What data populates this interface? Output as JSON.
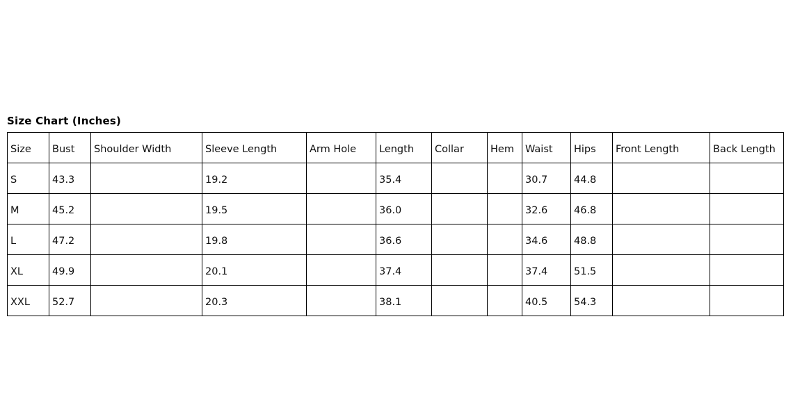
{
  "title": "Size Chart (Inches)",
  "columns": [
    "Size",
    "Bust",
    "Shoulder Width",
    "Sleeve Length",
    "Arm Hole",
    "Length",
    "Collar",
    "Hem",
    "Waist",
    "Hips",
    "Front Length",
    "Back Length"
  ],
  "rows": [
    [
      "S",
      "43.3",
      "",
      "19.2",
      "",
      "35.4",
      "",
      "",
      "30.7",
      "44.8",
      "",
      ""
    ],
    [
      "M",
      "45.2",
      "",
      "19.5",
      "",
      "36.0",
      "",
      "",
      "32.6",
      "46.8",
      "",
      ""
    ],
    [
      "L",
      "47.2",
      "",
      "19.8",
      "",
      "36.6",
      "",
      "",
      "34.6",
      "48.8",
      "",
      ""
    ],
    [
      "XL",
      "49.9",
      "",
      "20.1",
      "",
      "37.4",
      "",
      "",
      "37.4",
      "51.5",
      "",
      ""
    ],
    [
      "XXL",
      "52.7",
      "",
      "20.3",
      "",
      "38.1",
      "",
      "",
      "40.5",
      "54.3",
      "",
      ""
    ]
  ]
}
